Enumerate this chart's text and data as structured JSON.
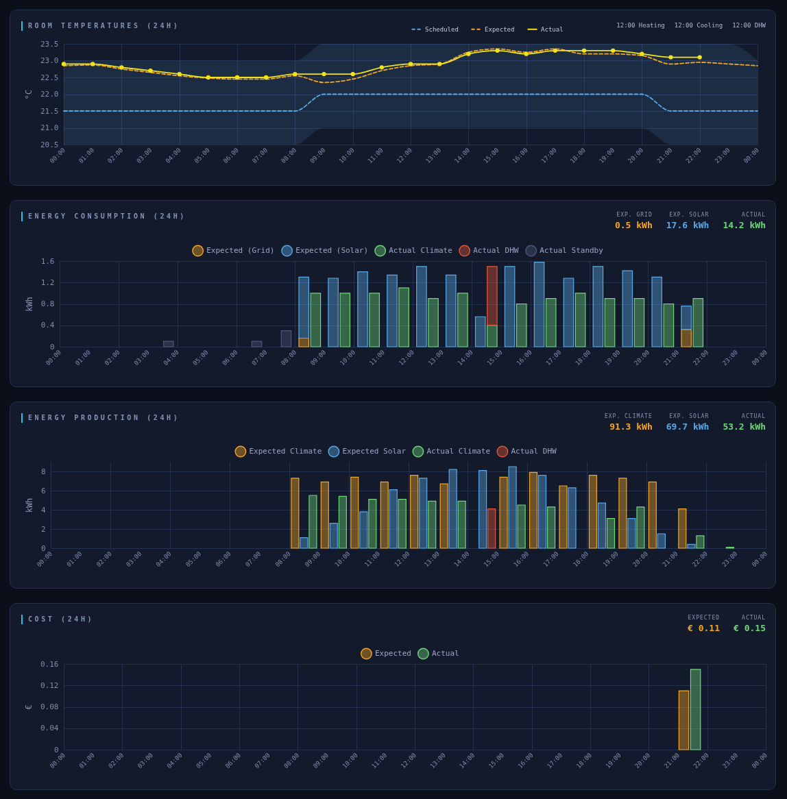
{
  "chart_data": [
    {
      "type": "line",
      "title": "ROOM TEMPERATURES (24H)",
      "ylabel": "°C",
      "legend": "top right",
      "grid": true,
      "annotations": [
        "12:00 Heating",
        "12:00 Cooling",
        "12:00 DHW"
      ],
      "x": [
        0,
        1,
        2,
        3,
        4,
        5,
        6,
        7,
        8,
        9,
        10,
        11,
        12,
        13,
        14,
        15,
        16,
        17,
        18,
        19,
        20,
        21,
        22,
        23,
        24
      ],
      "xlim": [
        0,
        24
      ],
      "xticks": [
        {
          "value": 0,
          "label": "00:00"
        },
        {
          "value": 1,
          "label": "01:00"
        },
        {
          "value": 2,
          "label": "02:00"
        },
        {
          "value": 3,
          "label": "03:00"
        },
        {
          "value": 4,
          "label": "04:00"
        },
        {
          "value": 5,
          "label": "05:00"
        },
        {
          "value": 6,
          "label": "06:00"
        },
        {
          "value": 7,
          "label": "07:00"
        },
        {
          "value": 8,
          "label": "08:00"
        },
        {
          "value": 9,
          "label": "09:00"
        },
        {
          "value": 10,
          "label": "10:00"
        },
        {
          "value": 11,
          "label": "11:00"
        },
        {
          "value": 12,
          "label": "12:00"
        },
        {
          "value": 13,
          "label": "13:00"
        },
        {
          "value": 14,
          "label": "14:00"
        },
        {
          "value": 15,
          "label": "15:00"
        },
        {
          "value": 16,
          "label": "16:00"
        },
        {
          "value": 17,
          "label": "17:00"
        },
        {
          "value": 18,
          "label": "18:00"
        },
        {
          "value": 19,
          "label": "19:00"
        },
        {
          "value": 20,
          "label": "20:00"
        },
        {
          "value": 21,
          "label": "21:00"
        },
        {
          "value": 22,
          "label": "22:00"
        },
        {
          "value": 23,
          "label": "23:00"
        },
        {
          "value": 24,
          "label": "00:00"
        }
      ],
      "ylim": [
        20.5,
        23.5
      ],
      "yticks": [
        20.5,
        {
          "value": 21,
          "label": "21.0"
        },
        21.5,
        {
          "value": 22,
          "label": "22.0"
        },
        22.5,
        {
          "value": 23,
          "label": "23.0"
        },
        23.5
      ],
      "series": [
        {
          "name": "Scheduled",
          "color": "#5aa9e6",
          "line_style": "dashed",
          "values": [
            21.5,
            21.5,
            21.5,
            21.5,
            21.5,
            21.5,
            21.5,
            21.5,
            21.5,
            22,
            22,
            22,
            22,
            22,
            22,
            22,
            22,
            22,
            22,
            22,
            22,
            21.5,
            21.5,
            21.5,
            21.5
          ],
          "lower": [
            20.5,
            20.5,
            20.5,
            20.5,
            20.5,
            20.5,
            20.5,
            20.5,
            20.5,
            21,
            21,
            21,
            21,
            21,
            21,
            21,
            21,
            21,
            21,
            21,
            21,
            20.5,
            20.5,
            20.5,
            20.5
          ],
          "upper": [
            23,
            23,
            23,
            23,
            23,
            23,
            23,
            23,
            23,
            23.5,
            23.5,
            23.5,
            23.5,
            23.5,
            23.5,
            23.5,
            23.5,
            23.5,
            23.5,
            23.5,
            23.5,
            23.5,
            23.5,
            23.5,
            23
          ]
        },
        {
          "name": "Expected",
          "color": "#f5a623",
          "line_style": "dashed",
          "values": [
            22.85,
            22.87,
            22.75,
            22.65,
            22.55,
            22.48,
            22.45,
            22.45,
            22.55,
            22.35,
            22.45,
            22.7,
            22.85,
            22.9,
            23.25,
            23.35,
            23.25,
            23.35,
            23.2,
            23.2,
            23.15,
            22.9,
            22.95,
            22.9,
            22.85
          ]
        },
        {
          "name": "Actual",
          "color": "#f2e21b",
          "line_style": "solid",
          "marker": "circle",
          "values": [
            22.9,
            22.9,
            22.8,
            22.7,
            22.6,
            22.5,
            22.5,
            22.5,
            22.6,
            22.6,
            22.6,
            22.8,
            22.9,
            22.9,
            23.2,
            23.3,
            23.2,
            23.3,
            23.3,
            23.3,
            23.2,
            23.1,
            23.1,
            null,
            null
          ]
        }
      ]
    },
    {
      "type": "bar",
      "title": "ENERGY CONSUMPTION (24H)",
      "ylabel": "kWh",
      "legend": "top",
      "grid": true,
      "annotations": [
        "EXP. GRID",
        "0.5 kWh",
        "EXP. SOLAR",
        "17.6 kWh",
        "ACTUAL",
        "14.2 kWh"
      ],
      "xlim": [
        0,
        24
      ],
      "xticks": [
        {
          "value": 0,
          "label": "00:00"
        },
        {
          "value": 1,
          "label": "01:00"
        },
        {
          "value": 2,
          "label": "02:00"
        },
        {
          "value": 3,
          "label": "03:00"
        },
        {
          "value": 4,
          "label": "04:00"
        },
        {
          "value": 5,
          "label": "05:00"
        },
        {
          "value": 6,
          "label": "06:00"
        },
        {
          "value": 7,
          "label": "07:00"
        },
        {
          "value": 8,
          "label": "08:00"
        },
        {
          "value": 9,
          "label": "09:00"
        },
        {
          "value": 10,
          "label": "10:00"
        },
        {
          "value": 11,
          "label": "11:00"
        },
        {
          "value": 12,
          "label": "12:00"
        },
        {
          "value": 13,
          "label": "13:00"
        },
        {
          "value": 14,
          "label": "14:00"
        },
        {
          "value": 15,
          "label": "15:00"
        },
        {
          "value": 16,
          "label": "16:00"
        },
        {
          "value": 17,
          "label": "17:00"
        },
        {
          "value": 18,
          "label": "18:00"
        },
        {
          "value": 19,
          "label": "19:00"
        },
        {
          "value": 20,
          "label": "20:00"
        },
        {
          "value": 21,
          "label": "21:00"
        },
        {
          "value": 22,
          "label": "22:00"
        },
        {
          "value": 23,
          "label": "23:00"
        },
        {
          "value": 24,
          "label": "00:00"
        }
      ],
      "ylim": [
        0,
        1.6
      ],
      "yticks": [
        0,
        0.4,
        0.8,
        1.2,
        1.6
      ],
      "series": [
        {
          "name": "Expected (Grid)",
          "color": "#f5a623",
          "x": [
            8.3,
            21.3
          ],
          "values": [
            0.16,
            0.32
          ]
        },
        {
          "name": "Expected (Solar)",
          "color": "#5aa9e6",
          "x": [
            8.3,
            9.3,
            10.3,
            11.3,
            12.3,
            13.3,
            14.3,
            15.3,
            16.3,
            17.3,
            18.3,
            19.3,
            20.3,
            21.3
          ],
          "base": [
            0.16,
            0,
            0,
            0,
            0,
            0,
            0,
            0,
            0,
            0,
            0,
            0,
            0,
            0.32
          ],
          "values": [
            1.14,
            1.28,
            1.4,
            1.34,
            1.5,
            1.34,
            0.56,
            1.5,
            1.58,
            1.28,
            1.5,
            1.42,
            1.3,
            0.44
          ]
        },
        {
          "name": "Actual Climate",
          "color": "#6fd67a",
          "x": [
            8.7,
            9.7,
            10.7,
            11.7,
            12.7,
            13.7,
            14.7,
            15.7,
            16.7,
            17.7,
            18.7,
            19.7,
            20.7,
            21.7
          ],
          "values": [
            1.0,
            1.0,
            1.0,
            1.1,
            0.9,
            1.0,
            0.4,
            0.8,
            0.9,
            1.0,
            0.9,
            0.9,
            0.8,
            0.9
          ]
        },
        {
          "name": "Actual DHW",
          "color": "#e2553b",
          "x": [
            14.7
          ],
          "base": [
            0.4
          ],
          "values": [
            1.1
          ]
        },
        {
          "name": "Actual Standby",
          "color": "#4c5878",
          "x": [
            3.7,
            6.7,
            7.7
          ],
          "values": [
            0.1,
            0.1,
            0.3
          ]
        }
      ]
    },
    {
      "type": "bar",
      "title": "ENERGY PRODUCTION (24H)",
      "ylabel": "kWh",
      "legend": "top",
      "grid": true,
      "annotations": [
        "EXP. CLIMATE",
        "91.3 kWh",
        "EXP. SOLAR",
        "69.7 kWh",
        "ACTUAL",
        "53.2 kWh"
      ],
      "xlim": [
        0,
        24
      ],
      "xticks": [
        {
          "value": 0,
          "label": "00:00"
        },
        {
          "value": 1,
          "label": "01:00"
        },
        {
          "value": 2,
          "label": "02:00"
        },
        {
          "value": 3,
          "label": "03:00"
        },
        {
          "value": 4,
          "label": "04:00"
        },
        {
          "value": 5,
          "label": "05:00"
        },
        {
          "value": 6,
          "label": "06:00"
        },
        {
          "value": 7,
          "label": "07:00"
        },
        {
          "value": 8,
          "label": "08:00"
        },
        {
          "value": 9,
          "label": "09:00"
        },
        {
          "value": 10,
          "label": "10:00"
        },
        {
          "value": 11,
          "label": "11:00"
        },
        {
          "value": 12,
          "label": "12:00"
        },
        {
          "value": 13,
          "label": "13:00"
        },
        {
          "value": 14,
          "label": "14:00"
        },
        {
          "value": 15,
          "label": "15:00"
        },
        {
          "value": 16,
          "label": "16:00"
        },
        {
          "value": 17,
          "label": "17:00"
        },
        {
          "value": 18,
          "label": "18:00"
        },
        {
          "value": 19,
          "label": "19:00"
        },
        {
          "value": 20,
          "label": "20:00"
        },
        {
          "value": 21,
          "label": "21:00"
        },
        {
          "value": 22,
          "label": "22:00"
        },
        {
          "value": 23,
          "label": "23:00"
        },
        {
          "value": 24,
          "label": "00:00"
        }
      ],
      "ylim": [
        0,
        9
      ],
      "yticks": [
        0,
        2,
        4,
        6,
        8
      ],
      "series": [
        {
          "name": "Expected Climate",
          "color": "#f5a623",
          "x": [
            8.2,
            9.2,
            10.2,
            11.2,
            12.2,
            13.2,
            15.2,
            16.2,
            17.2,
            18.2,
            19.2,
            20.2,
            21.2
          ],
          "values": [
            7.3,
            6.9,
            7.4,
            6.9,
            7.6,
            6.7,
            7.4,
            7.9,
            6.5,
            7.6,
            7.3,
            6.9,
            4.1
          ]
        },
        {
          "name": "Expected Solar",
          "color": "#5aa9e6",
          "x": [
            8.5,
            9.5,
            10.5,
            11.5,
            12.5,
            13.5,
            14.5,
            15.5,
            16.5,
            17.5,
            18.5,
            19.5,
            20.5,
            21.5
          ],
          "values": [
            1.1,
            2.6,
            3.8,
            6.1,
            7.3,
            8.2,
            8.1,
            8.5,
            7.6,
            6.3,
            4.7,
            3.1,
            1.5,
            0.4
          ]
        },
        {
          "name": "Actual Climate",
          "color": "#6fd67a",
          "x": [
            8.8,
            9.8,
            10.8,
            11.8,
            12.8,
            13.8,
            15.8,
            16.8,
            18.8,
            19.8,
            21.8,
            22.8
          ],
          "values": [
            5.5,
            5.4,
            5.1,
            5.1,
            4.9,
            4.9,
            4.5,
            4.3,
            3.1,
            4.3,
            1.3,
            0.1
          ]
        },
        {
          "name": "Actual DHW",
          "color": "#e2553b",
          "x": [
            14.8
          ],
          "values": [
            4.1
          ]
        }
      ]
    },
    {
      "type": "bar",
      "title": "COST (24H)",
      "ylabel": "€",
      "legend": "top",
      "grid": true,
      "annotations": [
        "EXPECTED",
        "€ 0.11",
        "ACTUAL",
        "€ 0.15"
      ],
      "xlim": [
        0,
        24
      ],
      "xticks": [
        {
          "value": 0,
          "label": "00:00"
        },
        {
          "value": 1,
          "label": "01:00"
        },
        {
          "value": 2,
          "label": "02:00"
        },
        {
          "value": 3,
          "label": "03:00"
        },
        {
          "value": 4,
          "label": "04:00"
        },
        {
          "value": 5,
          "label": "05:00"
        },
        {
          "value": 6,
          "label": "06:00"
        },
        {
          "value": 7,
          "label": "07:00"
        },
        {
          "value": 8,
          "label": "08:00"
        },
        {
          "value": 9,
          "label": "09:00"
        },
        {
          "value": 10,
          "label": "10:00"
        },
        {
          "value": 11,
          "label": "11:00"
        },
        {
          "value": 12,
          "label": "12:00"
        },
        {
          "value": 13,
          "label": "13:00"
        },
        {
          "value": 14,
          "label": "14:00"
        },
        {
          "value": 15,
          "label": "15:00"
        },
        {
          "value": 16,
          "label": "16:00"
        },
        {
          "value": 17,
          "label": "17:00"
        },
        {
          "value": 18,
          "label": "18:00"
        },
        {
          "value": 19,
          "label": "19:00"
        },
        {
          "value": 20,
          "label": "20:00"
        },
        {
          "value": 21,
          "label": "21:00"
        },
        {
          "value": 22,
          "label": "22:00"
        },
        {
          "value": 23,
          "label": "23:00"
        },
        {
          "value": 24,
          "label": "00:00"
        }
      ],
      "ylim": [
        0,
        0.16
      ],
      "yticks": [
        0,
        0.04,
        0.08,
        0.12,
        0.16
      ],
      "series": [
        {
          "name": "Expected",
          "color": "#f5a623",
          "x": [
            21.2
          ],
          "values": [
            0.11
          ]
        },
        {
          "name": "Actual",
          "color": "#6fd67a",
          "x": [
            21.6
          ],
          "values": [
            0.15
          ]
        }
      ]
    }
  ]
}
